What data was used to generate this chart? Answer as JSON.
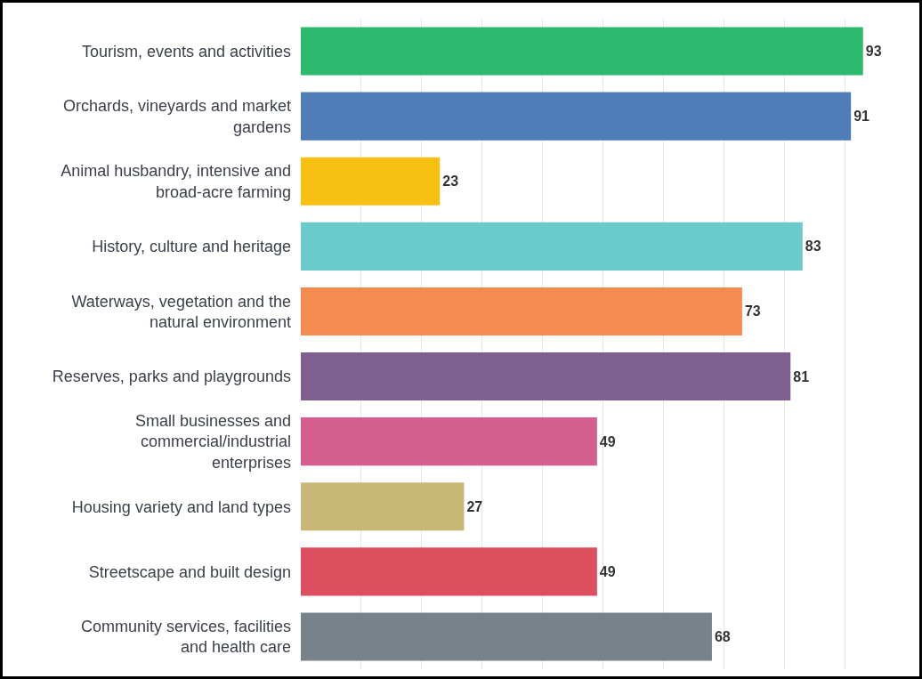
{
  "chart_data": {
    "type": "bar",
    "orientation": "horizontal",
    "categories": [
      "Tourism, events and activities",
      "Orchards, vineyards and market gardens",
      "Animal husbandry, intensive and broad-acre farming",
      "History, culture and heritage",
      "Waterways, vegetation and the natural environment",
      "Reserves, parks and playgrounds",
      "Small businesses and commercial/industrial enterprises",
      "Housing variety and land types",
      "Streetscape and built design",
      "Community services, facilities and health care"
    ],
    "values": [
      93,
      91,
      23,
      83,
      73,
      81,
      49,
      27,
      49,
      68
    ],
    "colors": [
      "#2dba6e",
      "#4f7db8",
      "#f8c013",
      "#6bcacc",
      "#f68b52",
      "#7f5f8f",
      "#d45f8f",
      "#c9b777",
      "#dd4f5e",
      "#77828a"
    ],
    "xticks": [
      {
        "value": 10,
        "label": null
      },
      {
        "value": 20,
        "label": null
      },
      {
        "value": 30,
        "label": null
      },
      {
        "value": 40,
        "label": null
      },
      {
        "value": 50,
        "label": null
      },
      {
        "value": 60,
        "label": null
      },
      {
        "value": 70,
        "label": null
      },
      {
        "value": 80,
        "label": null
      },
      {
        "value": 90,
        "label": null
      }
    ],
    "grid": "x",
    "data_labels": true,
    "tick_labels": "y"
  }
}
